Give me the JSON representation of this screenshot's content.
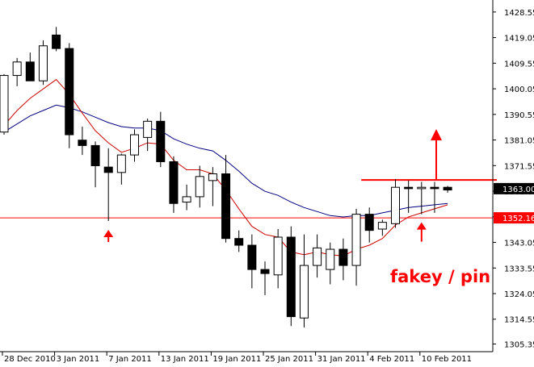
{
  "chart_data": {
    "type": "candlestick",
    "title": "",
    "xlabel": "",
    "ylabel": "",
    "ylim": [
      1302.5,
      1433.0
    ],
    "y_ticks": [
      "1428.55",
      "1419.05",
      "1409.55",
      "1400.05",
      "1390.55",
      "1381.05",
      "1371.55",
      "1362.05",
      "1352.55",
      "1343.05",
      "1333.55",
      "1324.05",
      "1314.55",
      "1305.35"
    ],
    "x_labels": [
      {
        "label": "28 Dec 2010",
        "index": 0
      },
      {
        "label": "3 Jan 2011",
        "index": 4
      },
      {
        "label": "7 Jan 2011",
        "index": 8
      },
      {
        "label": "13 Jan 2011",
        "index": 12
      },
      {
        "label": "19 Jan 2011",
        "index": 16
      },
      {
        "label": "25 Jan 2011",
        "index": 20
      },
      {
        "label": "31 Jan 2011",
        "index": 24
      },
      {
        "label": "4 Feb 2011",
        "index": 28
      },
      {
        "label": "10 Feb 2011",
        "index": 32
      }
    ],
    "candles": [
      {
        "o": 1384.0,
        "h": 1405.5,
        "l": 1383.0,
        "c": 1405.0
      },
      {
        "o": 1405.0,
        "h": 1411.5,
        "l": 1401.0,
        "c": 1410.0
      },
      {
        "o": 1410.0,
        "h": 1413.5,
        "l": 1403.5,
        "c": 1403.0
      },
      {
        "o": 1403.0,
        "h": 1418.0,
        "l": 1401.5,
        "c": 1416.0
      },
      {
        "o": 1420.0,
        "h": 1423.0,
        "l": 1414.0,
        "c": 1415.0
      },
      {
        "o": 1415.0,
        "h": 1417.0,
        "l": 1378.0,
        "c": 1383.0
      },
      {
        "o": 1381.0,
        "h": 1386.0,
        "l": 1375.5,
        "c": 1379.0
      },
      {
        "o": 1379.0,
        "h": 1380.5,
        "l": 1363.5,
        "c": 1371.5
      },
      {
        "o": 1371.0,
        "h": 1378.0,
        "l": 1351.0,
        "c": 1369.0
      },
      {
        "o": 1369.0,
        "h": 1376.0,
        "l": 1364.5,
        "c": 1375.5
      },
      {
        "o": 1375.5,
        "h": 1385.0,
        "l": 1373.0,
        "c": 1383.0
      },
      {
        "o": 1382.0,
        "h": 1389.0,
        "l": 1377.0,
        "c": 1388.0
      },
      {
        "o": 1388.0,
        "h": 1391.5,
        "l": 1371.0,
        "c": 1373.0
      },
      {
        "o": 1373.0,
        "h": 1375.0,
        "l": 1354.0,
        "c": 1357.5
      },
      {
        "o": 1358.0,
        "h": 1364.5,
        "l": 1355.0,
        "c": 1360.0
      },
      {
        "o": 1360.0,
        "h": 1371.5,
        "l": 1356.0,
        "c": 1367.5
      },
      {
        "o": 1366.0,
        "h": 1371.0,
        "l": 1356.5,
        "c": 1368.5
      },
      {
        "o": 1368.5,
        "h": 1375.5,
        "l": 1343.0,
        "c": 1344.5
      },
      {
        "o": 1344.5,
        "h": 1347.5,
        "l": 1339.5,
        "c": 1342.0
      },
      {
        "o": 1342.0,
        "h": 1346.0,
        "l": 1326.0,
        "c": 1333.0
      },
      {
        "o": 1333.0,
        "h": 1336.0,
        "l": 1323.5,
        "c": 1331.5
      },
      {
        "o": 1331.0,
        "h": 1348.0,
        "l": 1326.0,
        "c": 1345.0
      },
      {
        "o": 1345.0,
        "h": 1349.0,
        "l": 1312.0,
        "c": 1315.5
      },
      {
        "o": 1315.0,
        "h": 1346.0,
        "l": 1311.5,
        "c": 1334.5
      },
      {
        "o": 1334.5,
        "h": 1346.0,
        "l": 1330.0,
        "c": 1341.0
      },
      {
        "o": 1333.0,
        "h": 1343.0,
        "l": 1327.5,
        "c": 1340.5
      },
      {
        "o": 1340.5,
        "h": 1344.5,
        "l": 1329.0,
        "c": 1334.5
      },
      {
        "o": 1334.5,
        "h": 1355.5,
        "l": 1327.0,
        "c": 1353.5
      },
      {
        "o": 1353.5,
        "h": 1356.0,
        "l": 1343.0,
        "c": 1347.5
      },
      {
        "o": 1348.0,
        "h": 1351.5,
        "l": 1345.5,
        "c": 1350.5
      },
      {
        "o": 1350.0,
        "h": 1366.5,
        "l": 1348.5,
        "c": 1363.5
      },
      {
        "o": 1363.5,
        "h": 1366.0,
        "l": 1354.0,
        "c": 1363.0
      },
      {
        "o": 1363.0,
        "h": 1365.5,
        "l": 1353.5,
        "c": 1363.5
      },
      {
        "o": 1363.5,
        "h": 1365.5,
        "l": 1354.0,
        "c": 1363.0
      },
      {
        "o": 1363.5,
        "h": 1364.0,
        "l": 1361.5,
        "c": 1362.5
      }
    ],
    "ma_fast": [
      1386.5,
      1392.0,
      1396.5,
      1400.0,
      1403.5,
      1398.0,
      1391.0,
      1384.5,
      1380.0,
      1376.5,
      1378.0,
      1380.0,
      1379.5,
      1373.5,
      1370.0,
      1370.0,
      1368.5,
      1362.5,
      1355.5,
      1349.0,
      1346.0,
      1345.0,
      1339.5,
      1338.5,
      1339.5,
      1338.5,
      1338.0,
      1340.5,
      1342.0,
      1344.5,
      1349.5,
      1352.5,
      1354.0,
      1355.5,
      1357.0
    ],
    "ma_slow": [
      1384.0,
      1387.0,
      1390.0,
      1392.0,
      1394.0,
      1393.0,
      1391.5,
      1389.5,
      1387.5,
      1386.0,
      1385.5,
      1385.5,
      1384.5,
      1381.5,
      1379.5,
      1378.0,
      1377.0,
      1373.5,
      1369.5,
      1365.0,
      1362.0,
      1360.5,
      1358.0,
      1356.0,
      1354.5,
      1353.0,
      1352.5,
      1353.0,
      1353.0,
      1354.0,
      1355.0,
      1356.0,
      1356.5,
      1357.0,
      1357.5
    ],
    "horizontal_lines": [
      {
        "value": 1352.16,
        "label": "1352.16",
        "color": "#ff0000"
      }
    ],
    "resistance_line": {
      "value": 1366.2,
      "from_index": 28,
      "color": "#ff0000"
    },
    "current_price": {
      "value": 1363.0,
      "label": "1363.00"
    },
    "annotation": {
      "text": "fakey / pin",
      "color": "#ff0000"
    },
    "colors": {
      "bull_fill": "#ffffff",
      "bear_fill": "#000000",
      "ma_fast": "#cc0000",
      "ma_slow": "#000080",
      "annotation": "#ff0000"
    },
    "grid": false,
    "legend": "none"
  }
}
